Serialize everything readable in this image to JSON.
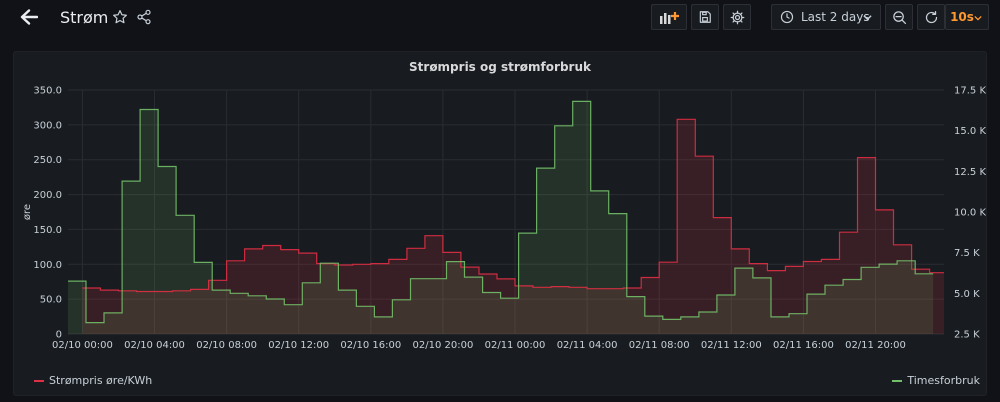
{
  "header": {
    "title": "Strøm",
    "time_range": "Last 2 days",
    "refresh_interval": "10s"
  },
  "panel": {
    "title": "Strømpris og strømforbruk"
  },
  "colors": {
    "price": "#e02f44",
    "consumption": "#73bf69",
    "accent": "#ff9830"
  },
  "legend": {
    "left": "Strømpris øre/KWh",
    "right": "Timesforbruk"
  },
  "chart_data": {
    "type": "line",
    "title": "Strømpris og strømforbruk",
    "x_unit": "hours since 02/10 00:00 (each step = 1 hour)",
    "x_ticks": [
      {
        "h": 0,
        "label": "02/10 00:00"
      },
      {
        "h": 4,
        "label": "02/10 04:00"
      },
      {
        "h": 8,
        "label": "02/10 08:00"
      },
      {
        "h": 12,
        "label": "02/10 12:00"
      },
      {
        "h": 16,
        "label": "02/10 16:00"
      },
      {
        "h": 20,
        "label": "02/10 20:00"
      },
      {
        "h": 24,
        "label": "02/11 00:00"
      },
      {
        "h": 28,
        "label": "02/11 04:00"
      },
      {
        "h": 32,
        "label": "02/11 08:00"
      },
      {
        "h": 36,
        "label": "02/11 12:00"
      },
      {
        "h": 40,
        "label": "02/11 16:00"
      },
      {
        "h": 44,
        "label": "02/11 20:00"
      }
    ],
    "x_range": [
      -0.8,
      47.8
    ],
    "y_left": {
      "label": "øre",
      "range": [
        0,
        350
      ],
      "ticks": [
        "0",
        "50.0",
        "100.0",
        "150.0",
        "200.0",
        "250.0",
        "300.0",
        "350.0"
      ],
      "tick_values": [
        0,
        50,
        100,
        150,
        200,
        250,
        300,
        350
      ]
    },
    "y_right": {
      "label": "",
      "range": [
        2.5,
        17.5
      ],
      "ticks": [
        "2.5 K",
        "5.0 K",
        "7.5 K",
        "10.0 K",
        "12.5 K",
        "15.0 K",
        "17.5 K"
      ],
      "tick_values": [
        2.5,
        5,
        7.5,
        10,
        12.5,
        15,
        17.5
      ]
    },
    "series": [
      {
        "name": "Strømpris øre/KWh",
        "axis": "left",
        "step": true,
        "fill": true,
        "start_hour": 0,
        "values": [
          66,
          63,
          62,
          61,
          61,
          62,
          64,
          77,
          105,
          122,
          127,
          121,
          116,
          101,
          99,
          100,
          101,
          107,
          123,
          141,
          117,
          96,
          86,
          79,
          69,
          67,
          68,
          67,
          65,
          65,
          66,
          81,
          103,
          308,
          255,
          167,
          122,
          101,
          91,
          97,
          104,
          107,
          146,
          253,
          178,
          128,
          93,
          88
        ]
      },
      {
        "name": "Timesforbruk",
        "axis": "right",
        "step": true,
        "fill": true,
        "start_hour": -0.8,
        "values": [
          5.75,
          3.2,
          3.8,
          11.9,
          16.3,
          12.8,
          9.8,
          6.9,
          5.2,
          5.0,
          4.85,
          4.65,
          4.3,
          5.65,
          6.85,
          5.2,
          4.2,
          3.55,
          4.6,
          5.9,
          5.9,
          6.95,
          6.0,
          5.05,
          4.7,
          8.7,
          12.7,
          15.3,
          16.8,
          11.3,
          9.9,
          4.8,
          3.6,
          3.4,
          3.55,
          3.85,
          4.9,
          6.55,
          5.95,
          3.55,
          3.75,
          4.95,
          5.5,
          5.85,
          6.6,
          6.8,
          7.0,
          6.2
        ]
      }
    ]
  }
}
